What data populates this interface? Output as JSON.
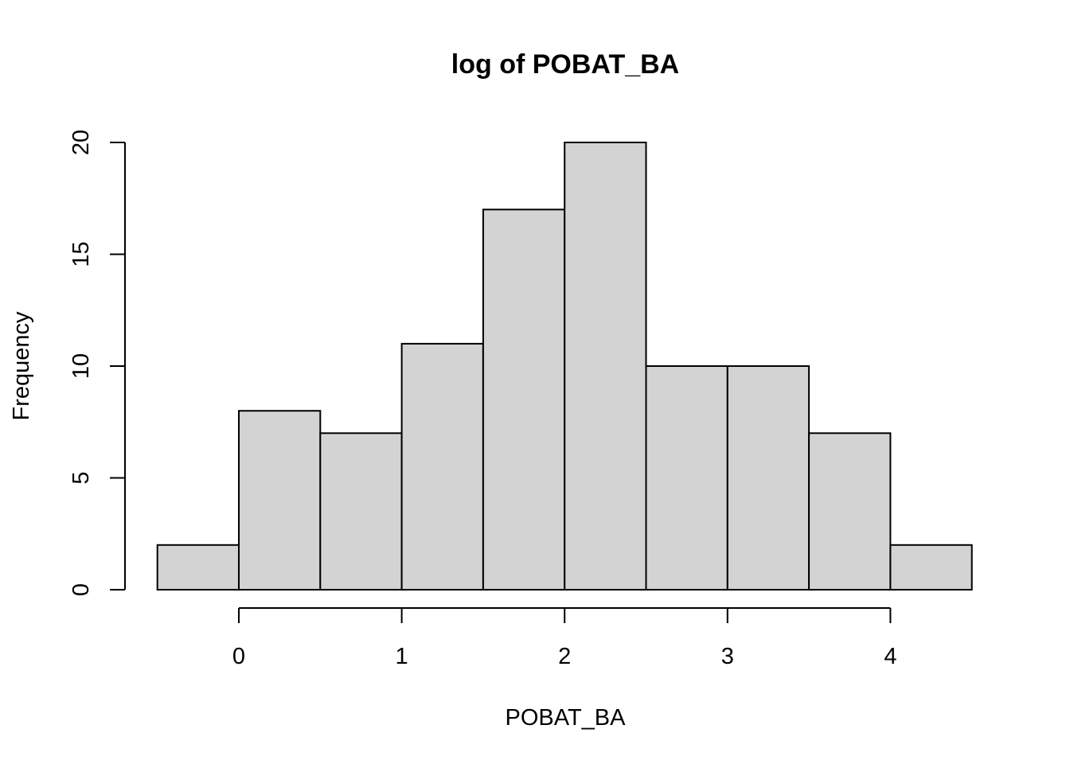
{
  "chart_data": {
    "type": "bar",
    "title": "log of POBAT_BA",
    "xlabel": "POBAT_BA",
    "ylabel": "Frequency",
    "bins": [
      {
        "x0": -0.5,
        "x1": 0.0,
        "count": 2
      },
      {
        "x0": 0.0,
        "x1": 0.5,
        "count": 8
      },
      {
        "x0": 0.5,
        "x1": 1.0,
        "count": 7
      },
      {
        "x0": 1.0,
        "x1": 1.5,
        "count": 11
      },
      {
        "x0": 1.5,
        "x1": 2.0,
        "count": 17
      },
      {
        "x0": 2.0,
        "x1": 2.5,
        "count": 20
      },
      {
        "x0": 2.5,
        "x1": 3.0,
        "count": 10
      },
      {
        "x0": 3.0,
        "x1": 3.5,
        "count": 10
      },
      {
        "x0": 3.5,
        "x1": 4.0,
        "count": 7
      },
      {
        "x0": 4.0,
        "x1": 4.5,
        "count": 2
      }
    ],
    "xlim": [
      -0.5,
      4.5
    ],
    "ylim": [
      0,
      20
    ],
    "x_ticks": [
      0,
      1,
      2,
      3,
      4
    ],
    "y_ticks": [
      0,
      5,
      10,
      15,
      20
    ],
    "grid": false,
    "bar_color": "#d3d3d3"
  }
}
